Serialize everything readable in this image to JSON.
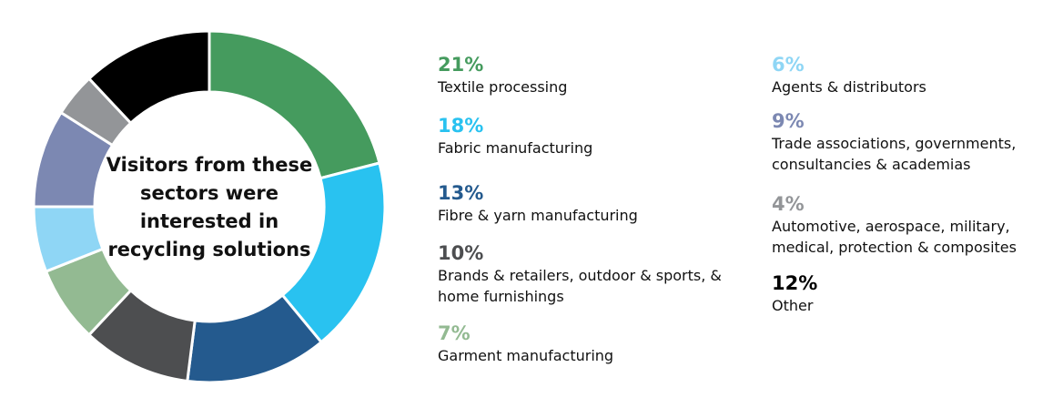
{
  "chart_data": {
    "type": "donut",
    "title": "Visitors from these sectors were interested in recycling solutions",
    "categories": [
      "Textile processing",
      "Fabric manufacturing",
      "Fibre & yarn manufacturing",
      "Brands & retailers, outdoor & sports, & home furnishings",
      "Garment manufacturing",
      "Agents & distributors",
      "Trade associations, governments, consultancies & academias",
      "Automotive, aerospace, military, medical, protection & composites",
      "Other"
    ],
    "values": [
      21,
      18,
      13,
      10,
      7,
      6,
      9,
      4,
      12
    ],
    "value_labels": [
      "21%",
      "18%",
      "13%",
      "10%",
      "7%",
      "6%",
      "9%",
      "4%",
      "12%"
    ],
    "colors": [
      "#459b5e",
      "#29c2f0",
      "#245a8e",
      "#4d4e50",
      "#93ba92",
      "#8fd6f5",
      "#7c88b2",
      "#939598",
      "#000000"
    ]
  }
}
